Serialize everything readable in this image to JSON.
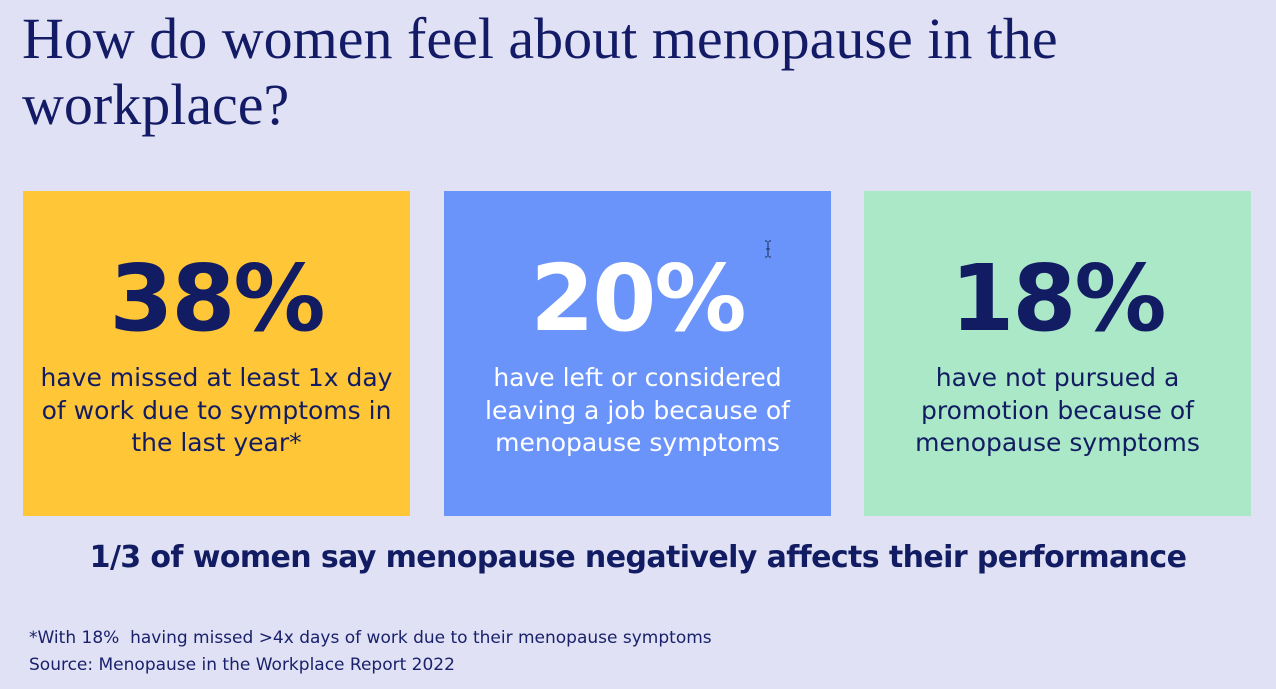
{
  "title": "How do women feel about menopause in the workplace?",
  "stats": [
    {
      "value": "38%",
      "description": "have missed at least 1x day of work due to symptoms in the last year*",
      "background": "#ffc637",
      "text_color": "#121c62"
    },
    {
      "value": "20%",
      "description": "have left or considered leaving a job because of menopause symptoms",
      "background": "#6b94fb",
      "text_color": "#ffffff"
    },
    {
      "value": "18%",
      "description": "have not pursued a promotion because of menopause symptoms",
      "background": "#aae8c7",
      "text_color": "#121c62"
    }
  ],
  "highlight": "1/3 of women say menopause negatively affects their performance",
  "footnote": {
    "note": "*With 18%  having missed >4x days of work due to their menopause symptoms",
    "source": "Source: Menopause in the Workplace Report 2022"
  },
  "colors": {
    "background": "#e0e1f4",
    "navy": "#121c62"
  },
  "cursor_icon": "text-cursor-icon"
}
